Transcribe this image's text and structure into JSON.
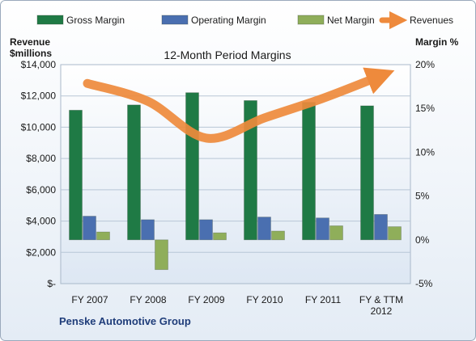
{
  "chart_data": {
    "type": "bar",
    "title": "12-Month Period Margins",
    "subtitle": "Penske Automotive Group",
    "y_left_label_line1": "Revenue",
    "y_left_label_line2": "$millions",
    "y_right_label": "Margin %",
    "categories": [
      [
        "FY 2007"
      ],
      [
        "FY 2008"
      ],
      [
        "FY 2009"
      ],
      [
        "FY 2010"
      ],
      [
        "FY 2011"
      ],
      [
        "FY & TTM",
        "2012"
      ]
    ],
    "y_left": {
      "min": 0,
      "max": 14000,
      "step": 2000,
      "ticks": [
        "$-",
        "$2,000",
        "$4,000",
        "$6,000",
        "$8,000",
        "$10,000",
        "$12,000",
        "$14,000"
      ]
    },
    "y_right": {
      "min": -5,
      "max": 20,
      "step": 5,
      "ticks": [
        "-5%",
        "0%",
        "5%",
        "10%",
        "15%",
        "20%"
      ]
    },
    "series": [
      {
        "name": "Gross Margin",
        "kind": "bar",
        "axis": "right",
        "color": "#1f7a45",
        "values": [
          14.8,
          15.4,
          16.8,
          15.9,
          15.7,
          15.3
        ]
      },
      {
        "name": "Operating Margin",
        "kind": "bar",
        "axis": "right",
        "color": "#4a6fb0",
        "values": [
          2.7,
          2.3,
          2.3,
          2.6,
          2.5,
          2.9
        ]
      },
      {
        "name": "Net Margin",
        "kind": "bar",
        "axis": "right",
        "color": "#8fae5a",
        "values": [
          0.9,
          -3.4,
          0.8,
          1.0,
          1.6,
          1.5
        ]
      },
      {
        "name": "Revenues",
        "kind": "line",
        "axis": "left",
        "color": "#ee8a3c",
        "values": [
          12800,
          11650,
          9300,
          10600,
          11850,
          13300
        ]
      }
    ],
    "grid": true,
    "legend": "top"
  }
}
